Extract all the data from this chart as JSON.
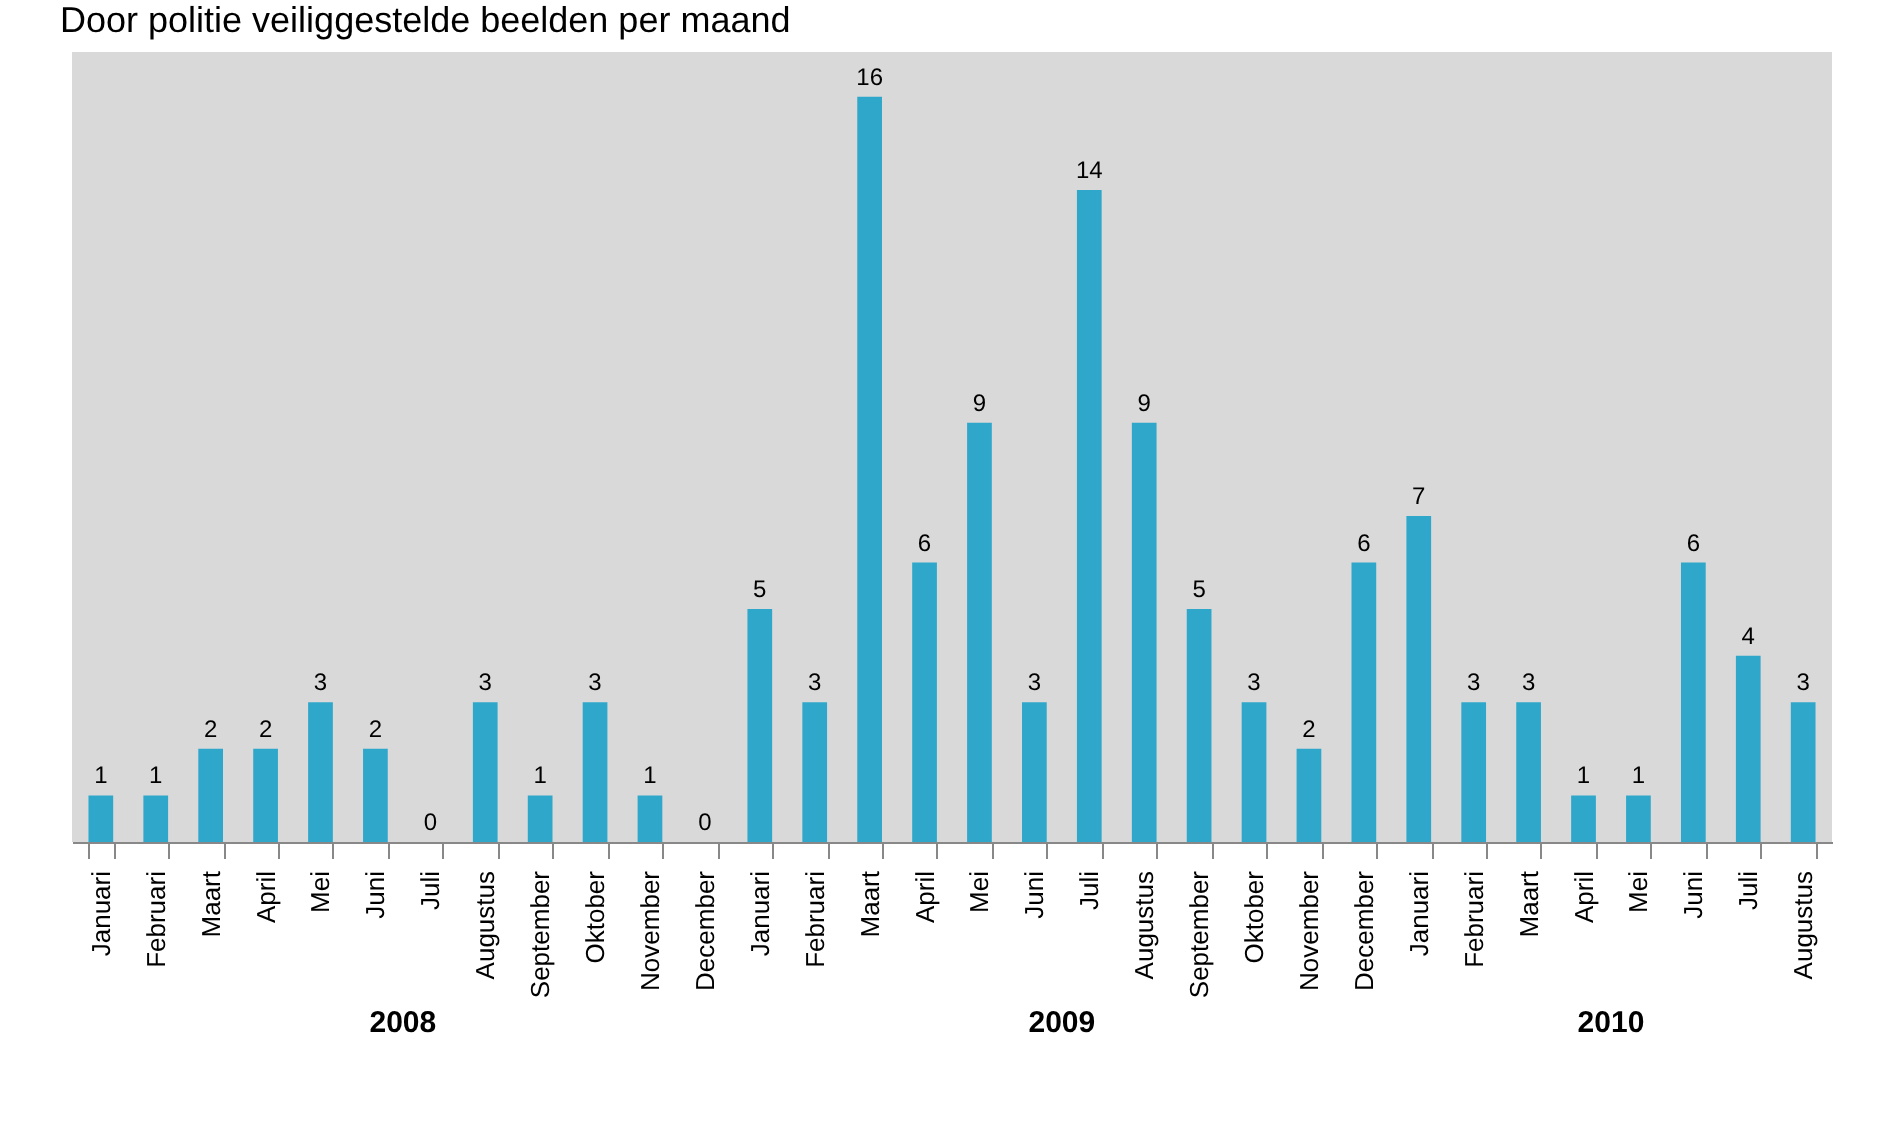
{
  "chart_data": {
    "type": "bar",
    "title": "Door politie veiliggestelde beelden per maand",
    "categories": [
      "Januari",
      "Februari",
      "Maart",
      "April",
      "Mei",
      "Juni",
      "Juli",
      "Augustus",
      "September",
      "Oktober",
      "November",
      "December",
      "Januari",
      "Februari",
      "Maart",
      "April",
      "Mei",
      "Juni",
      "Juli",
      "Augustus",
      "September",
      "Oktober",
      "November",
      "December",
      "Januari",
      "Februari",
      "Maart",
      "April",
      "Mei",
      "Juni",
      "Juli",
      "Augustus"
    ],
    "values": [
      1,
      1,
      2,
      2,
      3,
      2,
      0,
      3,
      1,
      3,
      1,
      0,
      5,
      3,
      16,
      6,
      9,
      3,
      14,
      9,
      5,
      3,
      2,
      6,
      7,
      3,
      3,
      1,
      1,
      6,
      4,
      3
    ],
    "color": "#2ea7cb",
    "data_labels": true,
    "grid": false,
    "tick_labels": "x",
    "annotations": [
      "2008",
      "2009",
      "2010"
    ]
  }
}
